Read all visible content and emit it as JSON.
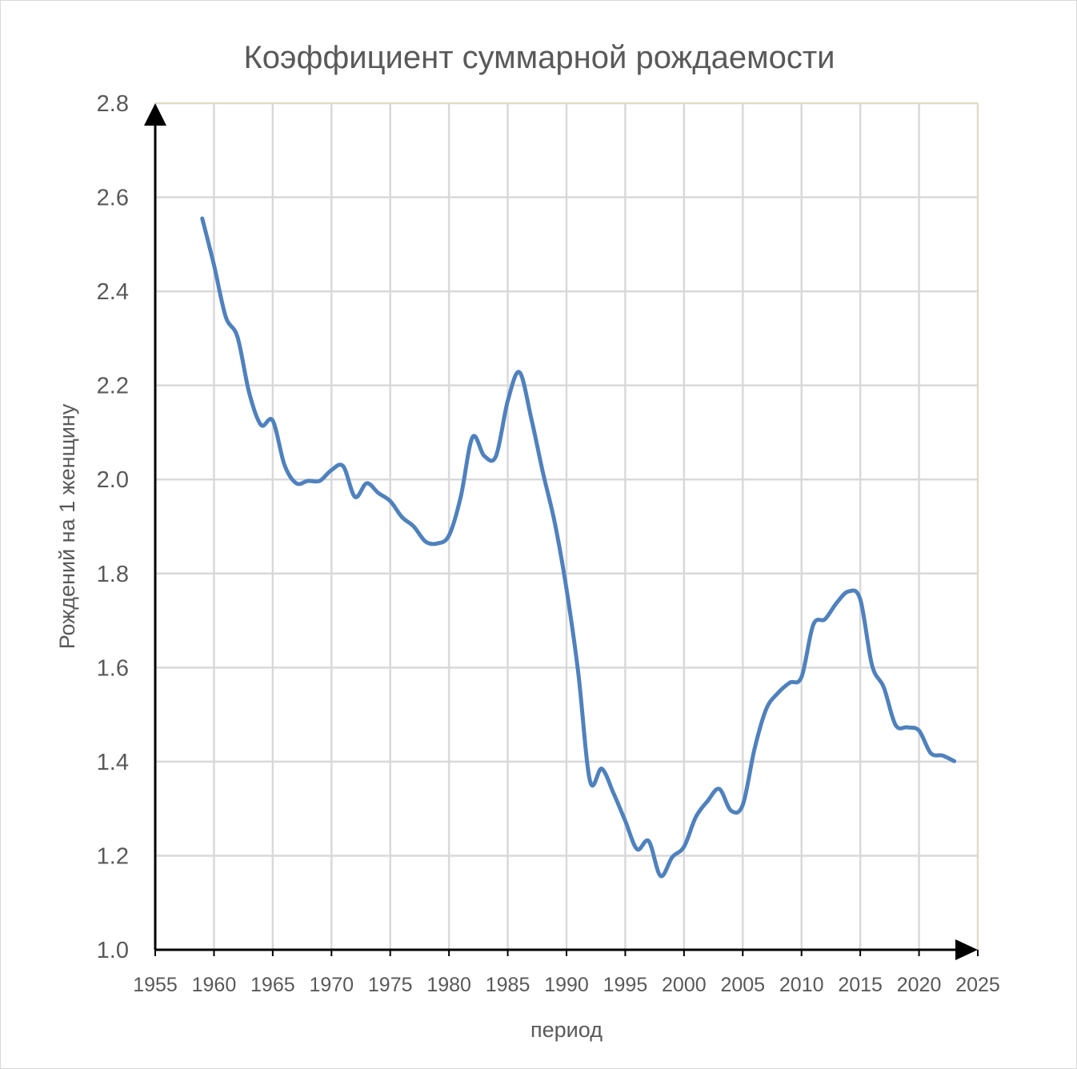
{
  "chart_data": {
    "type": "line",
    "title": "Коэффициент суммарной рождаемости",
    "xlabel": "период",
    "ylabel": "Рождений на 1 женщину",
    "xlim": [
      1955,
      2025
    ],
    "ylim": [
      1.0,
      2.8
    ],
    "xticks": [
      "1955",
      "1960",
      "1965",
      "1970",
      "1975",
      "1980",
      "1985",
      "1990",
      "1995",
      "2000",
      "2005",
      "2010",
      "2015",
      "2020",
      "2025"
    ],
    "yticks": [
      "1.0",
      "1.2",
      "1.4",
      "1.6",
      "1.8",
      "2.0",
      "2.2",
      "2.4",
      "2.6",
      "2.8"
    ],
    "grid": true,
    "legend": "none",
    "line_color": "#4f81bd",
    "x": [
      1959,
      1960,
      1961,
      1962,
      1963,
      1964,
      1965,
      1966,
      1967,
      1968,
      1969,
      1970,
      1971,
      1972,
      1973,
      1974,
      1975,
      1976,
      1977,
      1978,
      1979,
      1980,
      1981,
      1982,
      1983,
      1984,
      1985,
      1986,
      1987,
      1988,
      1989,
      1990,
      1991,
      1992,
      1993,
      1994,
      1995,
      1996,
      1997,
      1998,
      1999,
      2000,
      2001,
      2002,
      2003,
      2004,
      2005,
      2006,
      2007,
      2008,
      2009,
      2010,
      2011,
      2012,
      2013,
      2014,
      2015,
      2016,
      2017,
      2018,
      2019,
      2020,
      2021,
      2022,
      2023
    ],
    "y": [
      2.555,
      2.456,
      2.346,
      2.303,
      2.184,
      2.116,
      2.125,
      2.031,
      1.992,
      1.997,
      1.997,
      2.02,
      2.028,
      1.963,
      1.992,
      1.971,
      1.954,
      1.92,
      1.9,
      1.868,
      1.864,
      1.881,
      1.963,
      2.09,
      2.05,
      2.05,
      2.167,
      2.228,
      2.13,
      2.014,
      1.908,
      1.767,
      1.589,
      1.359,
      1.385,
      1.333,
      1.274,
      1.214,
      1.231,
      1.157,
      1.197,
      1.219,
      1.282,
      1.316,
      1.342,
      1.296,
      1.308,
      1.427,
      1.512,
      1.546,
      1.568,
      1.58,
      1.691,
      1.703,
      1.738,
      1.762,
      1.745,
      1.605,
      1.558,
      1.478,
      1.473,
      1.466,
      1.418,
      1.413,
      1.401
    ]
  }
}
